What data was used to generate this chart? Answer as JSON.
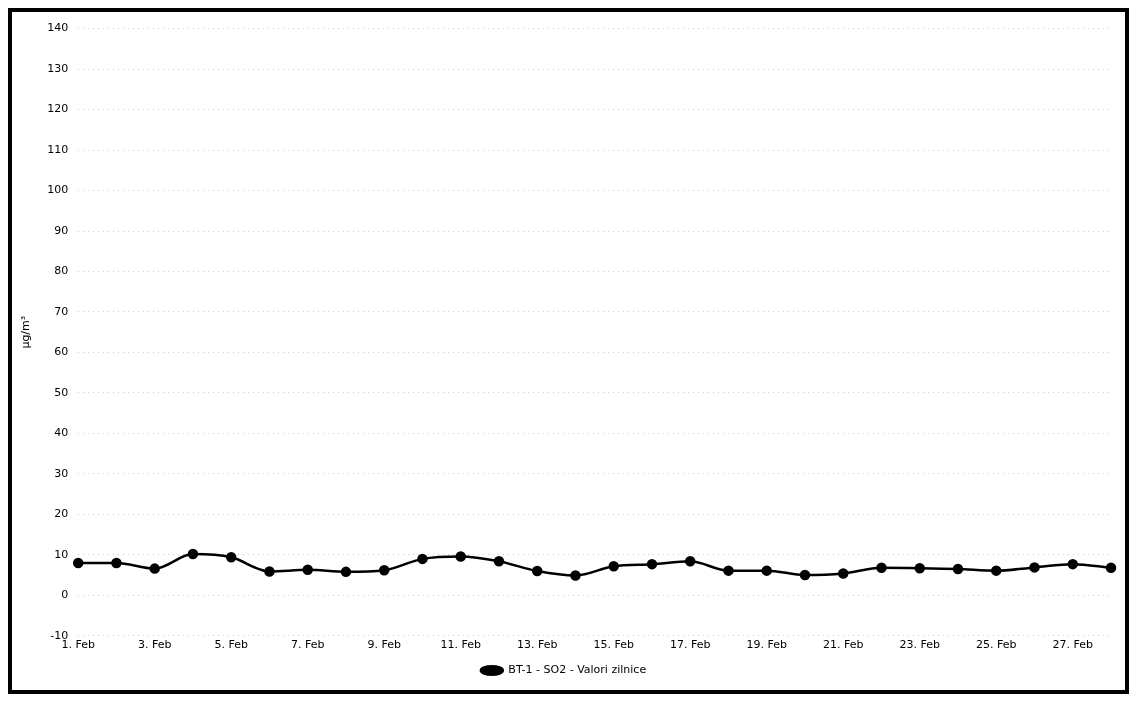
{
  "chart_data": {
    "type": "line",
    "ylabel": "µg/m³",
    "categories": [
      "1. Feb",
      null,
      "3. Feb",
      null,
      "5. Feb",
      null,
      "7. Feb",
      null,
      "9. Feb",
      null,
      "11. Feb",
      null,
      "13. Feb",
      null,
      "15. Feb",
      null,
      "17. Feb",
      null,
      "19. Feb",
      null,
      "21. Feb",
      null,
      "23. Feb",
      null,
      "25. Feb",
      null,
      "27. Feb",
      null
    ],
    "series": [
      {
        "name": "BT-1 - SO2 - Valori zilnice",
        "color": "#000000",
        "values": [
          8.0,
          8.0,
          6.6,
          10.2,
          9.4,
          5.9,
          6.3,
          5.8,
          6.2,
          9.0,
          9.6,
          8.4,
          6.0,
          4.9,
          7.2,
          7.7,
          8.4,
          6.1,
          6.1,
          5.0,
          5.4,
          6.8,
          6.7,
          6.5,
          6.1,
          6.9,
          7.7,
          6.8
        ]
      }
    ],
    "ylim": [
      -10,
      140
    ],
    "yticks": [
      -10,
      0,
      10,
      20,
      30,
      40,
      50,
      60,
      70,
      80,
      90,
      100,
      110,
      120,
      130,
      140
    ],
    "grid": "y",
    "legend": "bottom",
    "marker": "circle",
    "line_style": "solid"
  }
}
